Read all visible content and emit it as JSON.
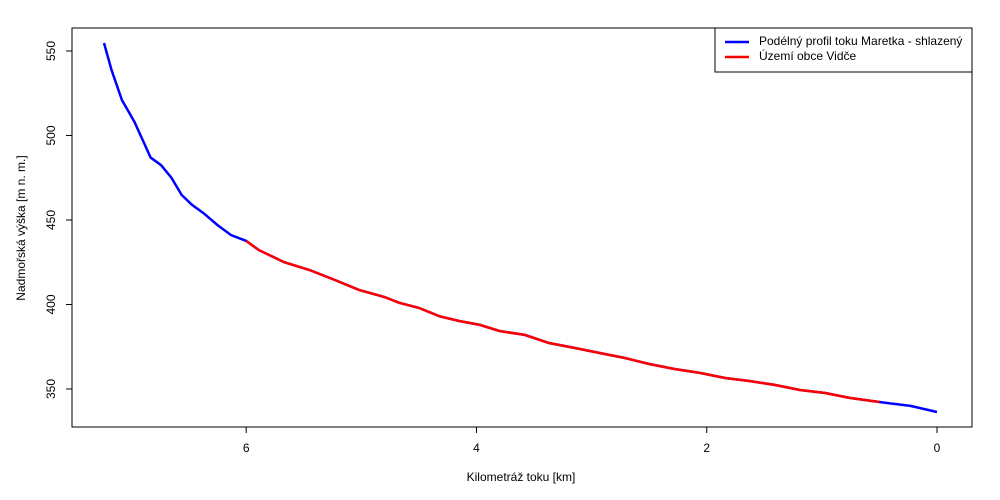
{
  "chart_data": {
    "type": "line",
    "xlabel": "Kilometráž toku [km]",
    "ylabel": "Nadmořská výška [m n. m.]",
    "x": [
      7.235,
      7.17,
      7.08,
      6.97,
      6.88,
      6.83,
      6.74,
      6.65,
      6.56,
      6.47,
      6.37,
      6.25,
      6.13,
      6.0,
      5.89,
      5.67,
      5.45,
      5.23,
      5.02,
      4.8,
      4.67,
      4.5,
      4.32,
      4.15,
      3.97,
      3.8,
      3.58,
      3.37,
      3.15,
      2.93,
      2.71,
      2.5,
      2.28,
      2.06,
      1.84,
      1.63,
      1.41,
      1.19,
      0.97,
      0.76,
      0.5,
      0.23,
      0
    ],
    "series": [
      {
        "name": "Podélný profil toku Maretka - shlazený",
        "color": "#0000ff",
        "values": [
          554.7,
          538.8,
          521,
          508,
          494.4,
          487,
          482.5,
          475,
          464.8,
          458.9,
          454,
          447,
          441,
          437.6,
          432.2,
          425,
          420.4,
          414.5,
          408.6,
          404.4,
          401,
          398,
          393,
          390.2,
          387.9,
          384.3,
          382,
          377.2,
          374.3,
          371.3,
          368.3,
          364.8,
          361.8,
          359.5,
          356.5,
          354.7,
          352.4,
          349.4,
          347.6,
          344.7,
          342.3,
          340,
          336.4
        ]
      },
      {
        "name": "Území obce Vidče",
        "color": "#ff0000",
        "values": [
          null,
          null,
          null,
          null,
          null,
          null,
          null,
          null,
          null,
          null,
          null,
          null,
          null,
          437.6,
          432.2,
          425,
          420.4,
          414.5,
          408.6,
          404.4,
          401,
          398,
          393,
          390.2,
          387.9,
          384.3,
          382,
          377.2,
          374.3,
          371.3,
          368.3,
          364.8,
          361.8,
          359.5,
          356.5,
          354.7,
          352.4,
          349.4,
          347.6,
          344.7,
          342.3,
          null,
          null
        ]
      }
    ],
    "xlim": [
      7.513,
      -0.304
    ],
    "ylim": [
      327.5,
      563.6
    ],
    "xticks": [
      6,
      4,
      2,
      0
    ],
    "yticks": [
      350,
      400,
      450,
      500,
      550
    ],
    "legend": "top-right"
  }
}
